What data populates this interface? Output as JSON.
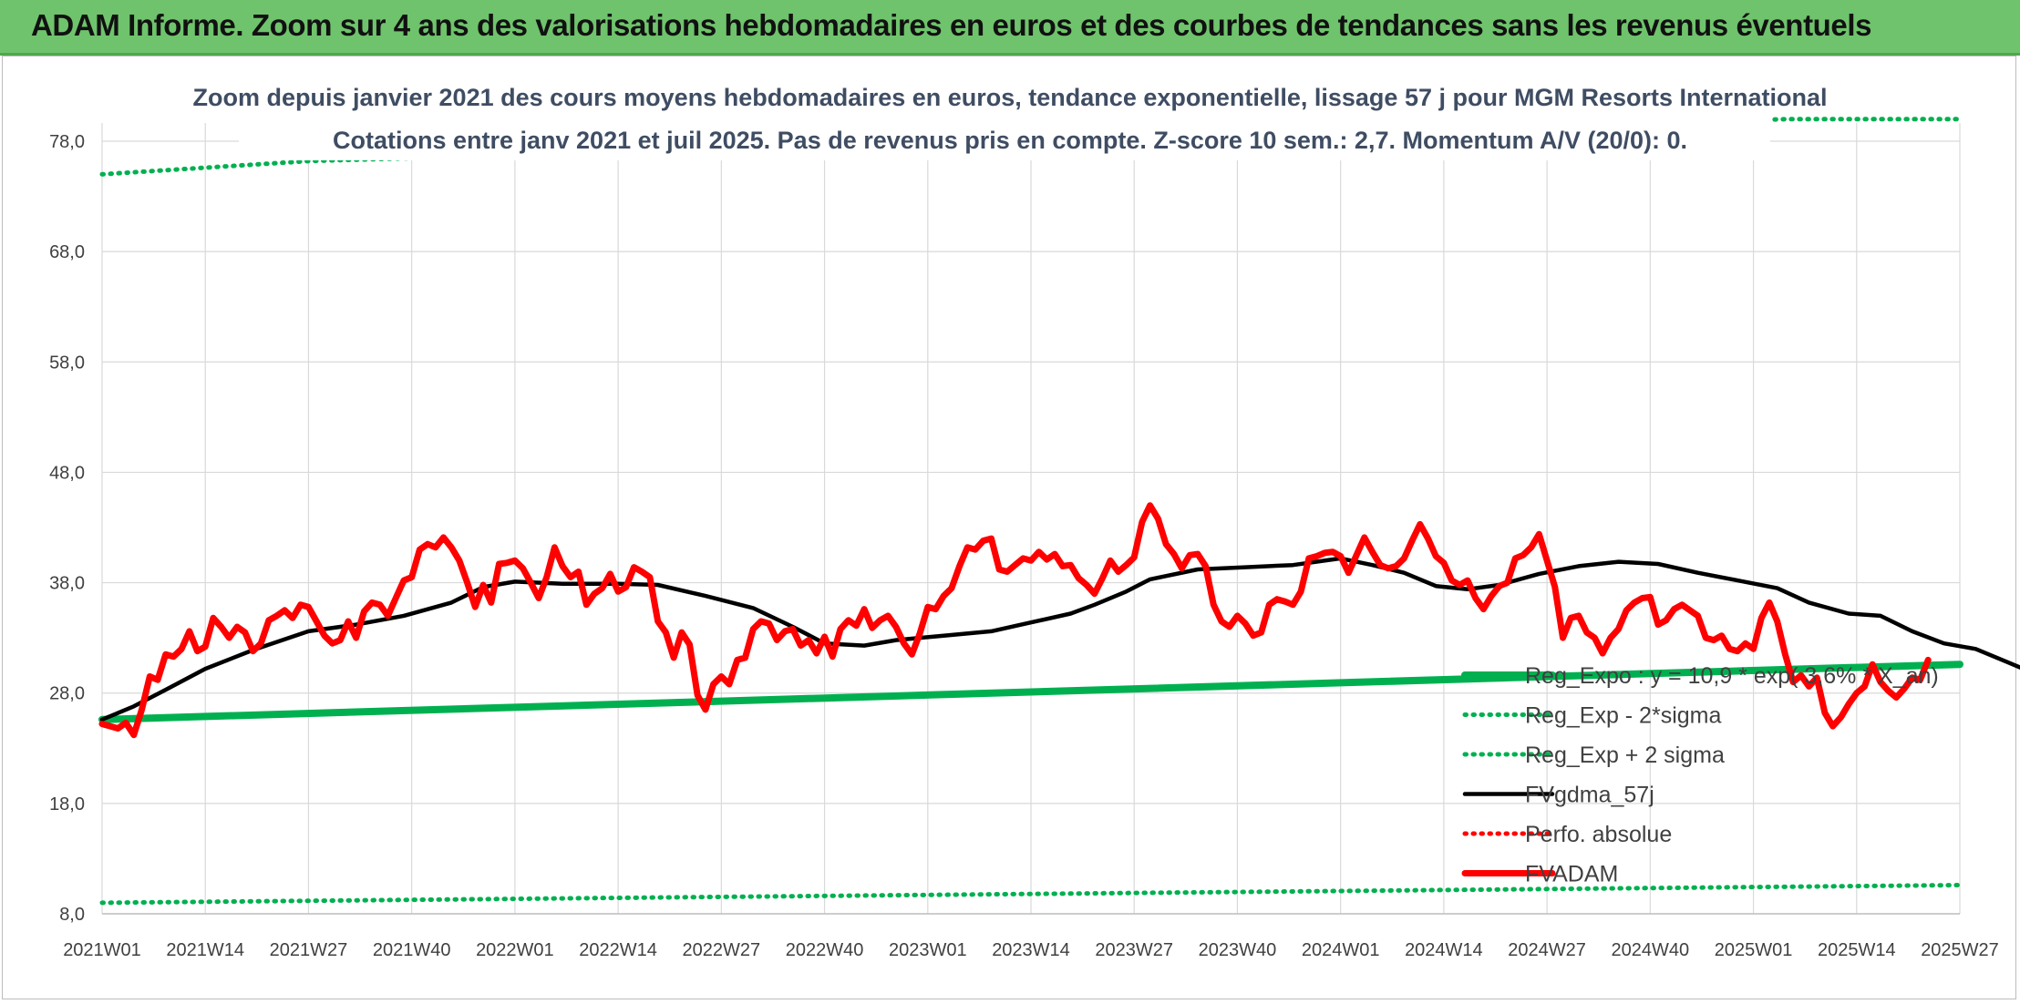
{
  "banner": {
    "title": "ADAM Informe. Zoom sur 4 ans des valorisations hebdomadaires en euros et des courbes de tendances sans les revenus éventuels"
  },
  "colors": {
    "banner_bg": "#6fc36c",
    "trend_green": "#00b050",
    "fvadam_red": "#ff0000",
    "gdma_black": "#000000",
    "perfo_red": "#ff0000"
  },
  "chart_data": {
    "type": "line",
    "title_line1": "Zoom depuis janvier 2021 des cours moyens hebdomadaires en euros, tendance exponentielle, lissage 57 j pour MGM Resorts International",
    "title_line2": "Cotations entre janv 2021 et juil 2025. Pas de revenus pris en compte. Z-score 10 sem.: 2,7. Momentum A/V (20/0): 0.",
    "ylim": [
      8.0,
      78.0
    ],
    "y_ticks": [
      "8,0",
      "18,0",
      "28,0",
      "38,0",
      "48,0",
      "58,0",
      "68,0",
      "78,0"
    ],
    "x_ticks": [
      "2021W01",
      "2021W14",
      "2021W27",
      "2021W40",
      "2022W01",
      "2022W14",
      "2022W27",
      "2022W40",
      "2023W01",
      "2023W14",
      "2023W27",
      "2023W40",
      "2024W01",
      "2024W14",
      "2024W27",
      "2024W40",
      "2025W01",
      "2025W14",
      "2025W27"
    ],
    "grid": true,
    "legend_position": "bottom-right",
    "series": [
      {
        "name": "Reg_Expo : y = 10,9 * exp( 3,6% * X_an)",
        "style": "thick-solid",
        "color": "#00b050",
        "points": [
          [
            0,
            25.6
          ],
          [
            234,
            30.6
          ]
        ]
      },
      {
        "name": "Reg_Exp - 2*sigma",
        "style": "dotted",
        "color": "#00b050",
        "points": [
          [
            0,
            9.0
          ],
          [
            234,
            10.6
          ]
        ]
      },
      {
        "name": "Reg_Exp + 2 sigma",
        "style": "dotted",
        "color": "#00b050",
        "points": [
          [
            0,
            75.0
          ],
          [
            26,
            76.2
          ],
          [
            212,
            80.0
          ],
          [
            234,
            80.0
          ]
        ]
      },
      {
        "name": "FVgdma_57j",
        "style": "solid",
        "color": "#000000",
        "points": [
          [
            0,
            25.6
          ],
          [
            4,
            26.8
          ],
          [
            8,
            28.3
          ],
          [
            13,
            30.2
          ],
          [
            19,
            31.9
          ],
          [
            26,
            33.6
          ],
          [
            32,
            34.2
          ],
          [
            38,
            35.0
          ],
          [
            44,
            36.2
          ],
          [
            48,
            37.6
          ],
          [
            52,
            38.1
          ],
          [
            58,
            37.9
          ],
          [
            65,
            37.9
          ],
          [
            70,
            37.8
          ],
          [
            76,
            36.8
          ],
          [
            82,
            35.7
          ],
          [
            87,
            34.0
          ],
          [
            91,
            32.5
          ],
          [
            96,
            32.3
          ],
          [
            100,
            32.8
          ],
          [
            106,
            33.2
          ],
          [
            112,
            33.6
          ],
          [
            117,
            34.4
          ],
          [
            122,
            35.2
          ],
          [
            125,
            36.0
          ],
          [
            129,
            37.2
          ],
          [
            132,
            38.3
          ],
          [
            138,
            39.2
          ],
          [
            144,
            39.4
          ],
          [
            150,
            39.6
          ],
          [
            156,
            40.2
          ],
          [
            160,
            39.6
          ],
          [
            164,
            38.9
          ],
          [
            168,
            37.7
          ],
          [
            172,
            37.4
          ],
          [
            176,
            37.8
          ],
          [
            181,
            38.8
          ],
          [
            186,
            39.5
          ],
          [
            191,
            39.9
          ],
          [
            196,
            39.7
          ],
          [
            201,
            38.9
          ],
          [
            206,
            38.2
          ],
          [
            211,
            37.5
          ],
          [
            215,
            36.2
          ],
          [
            220,
            35.2
          ],
          [
            224,
            35.0
          ],
          [
            228,
            33.6
          ],
          [
            232,
            32.5
          ],
          [
            236,
            32.0
          ],
          [
            240,
            30.8
          ],
          [
            244,
            29.6
          ],
          [
            249,
            29.4
          ],
          [
            253,
            29.7
          ],
          [
            257,
            30.3
          ]
        ]
      },
      {
        "name": "Perfo. absolue",
        "style": "dotted",
        "color": "#ff0000",
        "points": []
      },
      {
        "name": "FVADAM",
        "style": "thick-solid",
        "color": "#ff0000",
        "points": [
          [
            0,
            25.2
          ],
          [
            2,
            24.8
          ],
          [
            3,
            25.3
          ],
          [
            4,
            24.2
          ],
          [
            5,
            26.5
          ],
          [
            6,
            29.5
          ],
          [
            7,
            29.2
          ],
          [
            8,
            31.5
          ],
          [
            9,
            31.3
          ],
          [
            10,
            32.0
          ],
          [
            11,
            33.6
          ],
          [
            12,
            31.8
          ],
          [
            13,
            32.2
          ],
          [
            14,
            34.8
          ],
          [
            15,
            34.0
          ],
          [
            16,
            33.0
          ],
          [
            17,
            34.0
          ],
          [
            18,
            33.5
          ],
          [
            19,
            31.8
          ],
          [
            20,
            32.5
          ],
          [
            21,
            34.6
          ],
          [
            22,
            35.0
          ],
          [
            23,
            35.5
          ],
          [
            24,
            34.8
          ],
          [
            25,
            36.0
          ],
          [
            26,
            35.8
          ],
          [
            27,
            34.5
          ],
          [
            28,
            33.2
          ],
          [
            29,
            32.5
          ],
          [
            30,
            32.8
          ],
          [
            31,
            34.5
          ],
          [
            32,
            33.0
          ],
          [
            33,
            35.4
          ],
          [
            34,
            36.2
          ],
          [
            35,
            36.0
          ],
          [
            36,
            35.0
          ],
          [
            37,
            36.6
          ],
          [
            38,
            38.2
          ],
          [
            39,
            38.5
          ],
          [
            40,
            41.0
          ],
          [
            41,
            41.5
          ],
          [
            42,
            41.2
          ],
          [
            43,
            42.1
          ],
          [
            44,
            41.2
          ],
          [
            45,
            40.0
          ],
          [
            46,
            38.0
          ],
          [
            47,
            35.8
          ],
          [
            48,
            37.8
          ],
          [
            49,
            36.2
          ],
          [
            50,
            39.7
          ],
          [
            51,
            39.8
          ],
          [
            52,
            40.0
          ],
          [
            53,
            39.3
          ],
          [
            54,
            38.0
          ],
          [
            55,
            36.6
          ],
          [
            56,
            38.5
          ],
          [
            57,
            41.2
          ],
          [
            58,
            39.5
          ],
          [
            59,
            38.5
          ],
          [
            60,
            39.0
          ],
          [
            61,
            36.0
          ],
          [
            62,
            37.0
          ],
          [
            63,
            37.5
          ],
          [
            64,
            38.8
          ],
          [
            65,
            37.2
          ],
          [
            66,
            37.6
          ],
          [
            67,
            39.4
          ],
          [
            68,
            39.0
          ],
          [
            69,
            38.5
          ],
          [
            70,
            34.5
          ],
          [
            71,
            33.5
          ],
          [
            72,
            31.2
          ],
          [
            73,
            33.5
          ],
          [
            74,
            32.4
          ],
          [
            75,
            27.8
          ],
          [
            76,
            26.5
          ],
          [
            77,
            28.8
          ],
          [
            78,
            29.5
          ],
          [
            79,
            28.8
          ],
          [
            80,
            31.0
          ],
          [
            81,
            31.2
          ],
          [
            82,
            33.8
          ],
          [
            83,
            34.5
          ],
          [
            84,
            34.3
          ],
          [
            85,
            32.8
          ],
          [
            86,
            33.6
          ],
          [
            87,
            33.8
          ],
          [
            88,
            32.3
          ],
          [
            89,
            32.8
          ],
          [
            90,
            31.6
          ],
          [
            91,
            33.1
          ],
          [
            92,
            31.3
          ],
          [
            93,
            33.8
          ],
          [
            94,
            34.6
          ],
          [
            95,
            34.1
          ],
          [
            96,
            35.6
          ],
          [
            97,
            33.9
          ],
          [
            98,
            34.6
          ],
          [
            99,
            35.0
          ],
          [
            100,
            34.0
          ],
          [
            101,
            32.5
          ],
          [
            102,
            31.5
          ],
          [
            103,
            33.4
          ],
          [
            104,
            35.8
          ],
          [
            105,
            35.6
          ],
          [
            106,
            36.8
          ],
          [
            107,
            37.5
          ],
          [
            108,
            39.5
          ],
          [
            109,
            41.2
          ],
          [
            110,
            41.0
          ],
          [
            111,
            41.8
          ],
          [
            112,
            42.0
          ],
          [
            113,
            39.2
          ],
          [
            114,
            39.0
          ],
          [
            115,
            39.6
          ],
          [
            116,
            40.2
          ],
          [
            117,
            40.0
          ],
          [
            118,
            40.8
          ],
          [
            119,
            40.1
          ],
          [
            120,
            40.6
          ],
          [
            121,
            39.5
          ],
          [
            122,
            39.6
          ],
          [
            123,
            38.4
          ],
          [
            124,
            37.8
          ],
          [
            125,
            37.0
          ],
          [
            126,
            38.4
          ],
          [
            127,
            40.0
          ],
          [
            128,
            39.0
          ],
          [
            129,
            39.6
          ],
          [
            130,
            40.3
          ],
          [
            131,
            43.5
          ],
          [
            132,
            45.0
          ],
          [
            133,
            43.8
          ],
          [
            134,
            41.5
          ],
          [
            135,
            40.6
          ],
          [
            136,
            39.3
          ],
          [
            137,
            40.5
          ],
          [
            138,
            40.6
          ],
          [
            139,
            39.5
          ],
          [
            140,
            36.0
          ],
          [
            141,
            34.5
          ],
          [
            142,
            34.0
          ],
          [
            143,
            35.0
          ],
          [
            144,
            34.3
          ],
          [
            145,
            33.2
          ],
          [
            146,
            33.5
          ],
          [
            147,
            36.0
          ],
          [
            148,
            36.5
          ],
          [
            149,
            36.3
          ],
          [
            150,
            36.0
          ],
          [
            151,
            37.2
          ],
          [
            152,
            40.2
          ],
          [
            153,
            40.4
          ],
          [
            154,
            40.7
          ],
          [
            155,
            40.8
          ],
          [
            156,
            40.4
          ],
          [
            157,
            38.9
          ],
          [
            158,
            40.5
          ],
          [
            159,
            42.1
          ],
          [
            160,
            40.8
          ],
          [
            161,
            39.6
          ],
          [
            162,
            39.3
          ],
          [
            163,
            39.5
          ],
          [
            164,
            40.2
          ],
          [
            165,
            41.8
          ],
          [
            166,
            43.3
          ],
          [
            167,
            42.0
          ],
          [
            168,
            40.4
          ],
          [
            169,
            39.8
          ],
          [
            170,
            38.2
          ],
          [
            171,
            37.8
          ],
          [
            172,
            38.2
          ],
          [
            173,
            36.6
          ],
          [
            174,
            35.6
          ],
          [
            175,
            36.8
          ],
          [
            176,
            37.7
          ],
          [
            177,
            38.0
          ],
          [
            178,
            40.2
          ],
          [
            179,
            40.5
          ],
          [
            180,
            41.2
          ],
          [
            181,
            42.4
          ],
          [
            182,
            40.0
          ],
          [
            183,
            37.6
          ],
          [
            184,
            33.0
          ],
          [
            185,
            34.8
          ],
          [
            186,
            35.0
          ],
          [
            187,
            33.5
          ],
          [
            188,
            33.0
          ],
          [
            189,
            31.6
          ],
          [
            190,
            33.0
          ],
          [
            191,
            33.8
          ],
          [
            192,
            35.5
          ],
          [
            193,
            36.2
          ],
          [
            194,
            36.6
          ],
          [
            195,
            36.7
          ],
          [
            196,
            34.2
          ],
          [
            197,
            34.6
          ],
          [
            198,
            35.6
          ],
          [
            199,
            36.0
          ],
          [
            200,
            35.5
          ],
          [
            201,
            35.0
          ],
          [
            202,
            33.0
          ],
          [
            203,
            32.8
          ],
          [
            204,
            33.2
          ],
          [
            205,
            32.0
          ],
          [
            206,
            31.8
          ],
          [
            207,
            32.5
          ],
          [
            208,
            32.0
          ],
          [
            209,
            34.8
          ],
          [
            210,
            36.2
          ],
          [
            211,
            34.5
          ],
          [
            212,
            31.5
          ],
          [
            213,
            29.0
          ],
          [
            214,
            29.6
          ],
          [
            215,
            28.6
          ],
          [
            216,
            29.4
          ],
          [
            217,
            26.2
          ],
          [
            218,
            25.0
          ],
          [
            219,
            25.8
          ],
          [
            220,
            27.0
          ],
          [
            221,
            28.0
          ],
          [
            222,
            28.6
          ],
          [
            223,
            30.6
          ],
          [
            224,
            29.0
          ],
          [
            225,
            28.2
          ],
          [
            226,
            27.6
          ],
          [
            227,
            28.4
          ],
          [
            228,
            29.4
          ],
          [
            229,
            29.2
          ],
          [
            230,
            31.0
          ]
        ]
      }
    ]
  }
}
